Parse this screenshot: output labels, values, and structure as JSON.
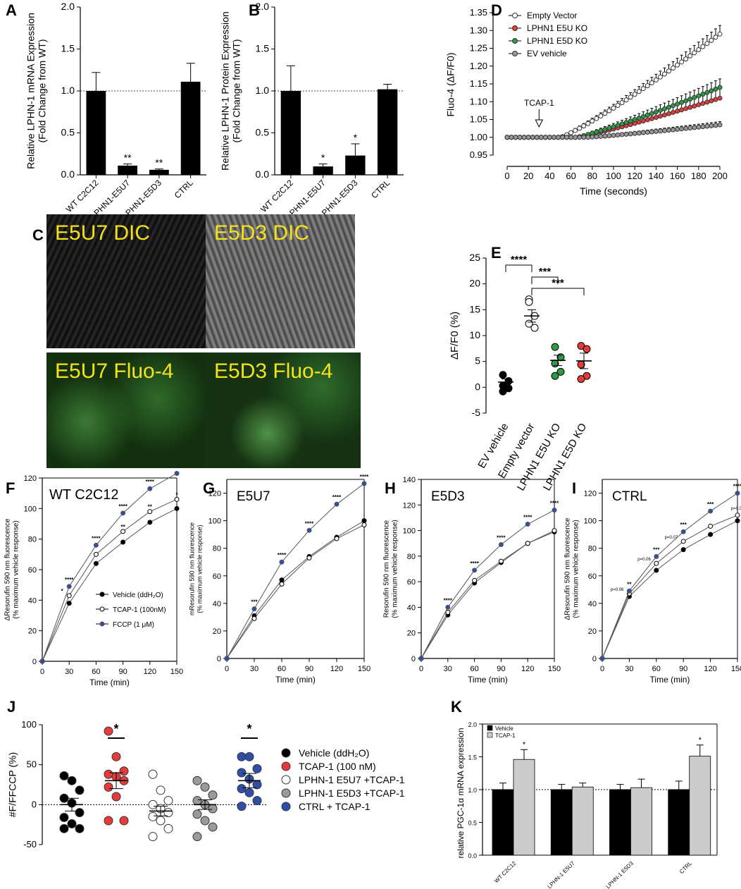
{
  "panel_letters": [
    "A",
    "B",
    "C",
    "D",
    "E",
    "F",
    "G",
    "H",
    "I",
    "J",
    "K"
  ],
  "microscopy": [
    {
      "label": "E5U7 DIC",
      "kind": "dic"
    },
    {
      "label": "E5D3 DIC",
      "kind": "dic"
    },
    {
      "label": "E5U7 Fluo-4",
      "kind": "fluo"
    },
    {
      "label": "E5D3 Fluo-4",
      "kind": "fluo"
    }
  ],
  "colors": {
    "bar": "#000000",
    "red": "#e53b3b",
    "green": "#2e9a46",
    "blue": "#2f4ea8",
    "grey": "#9a9a9a",
    "light_bar": "#cccccc",
    "label_yellow": "#f4e21a"
  },
  "chart_data": [
    {
      "panel": "A",
      "type": "bar",
      "ylabel": "Relative LPHN-1 mRNA Expression\n(Fold Change from WT)",
      "ylim": [
        0,
        2.0
      ],
      "yticks": [
        0.0,
        0.5,
        1.0,
        1.5,
        2.0
      ],
      "reference_line": 1.0,
      "categories": [
        "WT C2C12",
        "LPHN1-E5U7",
        "LPHN1-E5D3",
        "CTRL"
      ],
      "values": [
        1.0,
        0.11,
        0.06,
        1.11
      ],
      "errors": [
        0.22,
        0.02,
        0.01,
        0.22
      ],
      "annotations": [
        "",
        "**",
        "**",
        ""
      ]
    },
    {
      "panel": "B",
      "type": "bar",
      "ylabel": "Relative LPHN-1 Protein Expression\n(Fold Change from WT)",
      "ylim": [
        0,
        2.0
      ],
      "yticks": [
        0.0,
        0.5,
        1.0,
        1.5,
        2.0
      ],
      "reference_line": 1.0,
      "categories": [
        "WT C2C12",
        "LPHN1-E5U7",
        "LPHN1-E5D3",
        "CTRL"
      ],
      "values": [
        1.0,
        0.1,
        0.23,
        1.02
      ],
      "errors": [
        0.3,
        0.03,
        0.14,
        0.06
      ],
      "annotations": [
        "",
        "*",
        "*",
        ""
      ]
    },
    {
      "panel": "D",
      "type": "line",
      "ylabel": "Fluo-4 (ΔF/F0)",
      "xlabel": "Time (seconds)",
      "xlim": [
        0,
        200
      ],
      "ylim": [
        0.95,
        1.35
      ],
      "xticks": [
        0,
        20,
        40,
        60,
        80,
        100,
        120,
        140,
        160,
        180,
        200
      ],
      "yticks": [
        0.95,
        1.0,
        1.05,
        1.1,
        1.15,
        1.2,
        1.25,
        1.3,
        1.35
      ],
      "annotation": {
        "text": "TCAP-1",
        "x": 30
      },
      "legend_position": "top-left",
      "series": [
        {
          "name": "Empty Vector",
          "marker": "open",
          "end": 1.29,
          "start_rise": 50,
          "err": 0.02
        },
        {
          "name": "LPHN1 E5U KO",
          "marker": "red",
          "end": 1.11,
          "start_rise": 65,
          "err": 0.025
        },
        {
          "name": "LPHN1 E5D KO",
          "marker": "green",
          "end": 1.14,
          "start_rise": 65,
          "err": 0.02
        },
        {
          "name": "EV vehicle",
          "marker": "grey",
          "end": 1.035,
          "start_rise": 75,
          "err": 0.005
        }
      ]
    },
    {
      "panel": "E",
      "type": "scatter",
      "ylabel": "ΔF/F0 (%)",
      "ylim": [
        -5,
        25
      ],
      "yticks": [
        -5,
        0,
        5,
        10,
        15,
        20,
        25
      ],
      "categories": [
        "EV vehicle",
        "Empty vector",
        "LPHN1 E5U KO",
        "LPHN1 E5D KO"
      ],
      "points": [
        [
          2.4,
          1.2,
          0.3,
          -0.2,
          -0.8
        ],
        [
          17.0,
          13.8,
          12.3,
          11.5,
          16.5
        ],
        [
          7.8,
          5.8,
          4.6,
          3.0,
          2.2
        ],
        [
          8.0,
          7.4,
          4.4,
          2.2,
          1.6
        ]
      ],
      "means": [
        1.0,
        13.8,
        5.2,
        5.1
      ],
      "sems": [
        0.6,
        1.2,
        1.0,
        1.5
      ],
      "significance": [
        {
          "from": 0,
          "to": 1,
          "label": "****"
        },
        {
          "from": 1,
          "to": 2,
          "label": "***"
        },
        {
          "from": 1,
          "to": 3,
          "label": "***"
        }
      ]
    },
    {
      "panel": "F",
      "type": "line",
      "title": "WT C2C12",
      "ylabel": "ΔResorufin 590 nm fluorescence\n(% maximum vehicle response)",
      "xlabel": "Time (min)",
      "xlim": [
        0,
        150
      ],
      "ylim": [
        0,
        120
      ],
      "xticks": [
        0,
        30,
        60,
        90,
        120,
        150
      ],
      "yticks": [
        0,
        20,
        40,
        60,
        80,
        100,
        120
      ],
      "x": [
        0,
        30,
        60,
        90,
        120,
        150
      ],
      "series": [
        {
          "name": "Vehicle (ddH2O)",
          "values": [
            0,
            38,
            64,
            78,
            91,
            100
          ]
        },
        {
          "name": "TCAP-1 (100nM)",
          "values": [
            0,
            43,
            70,
            85,
            98,
            106
          ]
        },
        {
          "name": "FCCP (1 μM)",
          "values": [
            0,
            49,
            76,
            97,
            113,
            123
          ]
        }
      ],
      "legend_entries": [
        "Vehicle (ddH₂O)",
        "TCAP-1 (100nM)",
        "FCCP (1 μM)"
      ],
      "stars_fccp": [
        "****",
        "****",
        "****",
        "****",
        "****"
      ],
      "stars_tcap": [
        "*",
        "",
        "**",
        "**",
        "*"
      ]
    },
    {
      "panel": "G",
      "type": "line",
      "title": "E5U7",
      "ylabel": "mResorufin 590 nm fluorescence\n(% maximum vehicle response)",
      "xlabel": "Time (min)",
      "xlim": [
        0,
        150
      ],
      "ylim": [
        0,
        130
      ],
      "xticks": [
        0,
        30,
        60,
        90,
        120,
        150
      ],
      "yticks": [
        0,
        20,
        40,
        60,
        80,
        100,
        120
      ],
      "x": [
        0,
        30,
        60,
        90,
        120,
        150
      ],
      "series": [
        {
          "name": "Vehicle",
          "values": [
            0,
            31,
            57,
            74,
            88,
            100
          ]
        },
        {
          "name": "TCAP-1",
          "values": [
            0,
            29,
            54,
            73,
            87,
            97
          ]
        },
        {
          "name": "FCCP",
          "values": [
            0,
            36,
            70,
            93,
            112,
            127
          ]
        }
      ],
      "stars_fccp": [
        "***",
        "****",
        "****",
        "****",
        "****"
      ]
    },
    {
      "panel": "H",
      "type": "line",
      "title": "E5D3",
      "ylabel": "Resorufin 590 nm fluorescence\n(% maximum vehicle response)",
      "xlabel": "Time (min)",
      "xlim": [
        0,
        150
      ],
      "ylim": [
        0,
        140
      ],
      "xticks": [
        0,
        30,
        60,
        90,
        120,
        150
      ],
      "yticks": [
        0,
        20,
        40,
        60,
        80,
        100,
        120,
        140
      ],
      "x": [
        0,
        30,
        60,
        90,
        120,
        150
      ],
      "series": [
        {
          "name": "Vehicle",
          "values": [
            0,
            34,
            59,
            75,
            90,
            99
          ]
        },
        {
          "name": "TCAP-1",
          "values": [
            0,
            36,
            61,
            76,
            90,
            100
          ]
        },
        {
          "name": "FCCP",
          "values": [
            0,
            40,
            69,
            89,
            105,
            116
          ]
        }
      ],
      "stars_fccp": [
        "****",
        "****",
        "****",
        "****",
        "****"
      ]
    },
    {
      "panel": "I",
      "type": "line",
      "title": "CTRL",
      "ylabel": "ΔResorufin 590 nm fluorescence\n(% maximum vehicle response)",
      "xlabel": "Time (min)",
      "xlim": [
        0,
        150
      ],
      "ylim": [
        0,
        130
      ],
      "xticks": [
        0,
        30,
        60,
        90,
        120,
        150
      ],
      "yticks": [
        0,
        20,
        40,
        60,
        80,
        100,
        120
      ],
      "x": [
        0,
        30,
        60,
        90,
        120,
        150
      ],
      "series": [
        {
          "name": "Vehicle",
          "values": [
            0,
            45,
            64,
            79,
            90,
            100
          ]
        },
        {
          "name": "TCAP-1",
          "values": [
            0,
            47,
            69,
            85,
            96,
            104
          ]
        },
        {
          "name": "FCCP",
          "values": [
            0,
            49,
            74,
            92,
            107,
            120
          ]
        }
      ],
      "stars_fccp": [
        "**",
        "***",
        "***",
        "***",
        "****"
      ],
      "p_labels": [
        "p=0.06",
        "p=0.06",
        "p=0.07",
        "",
        "p=0.09"
      ]
    },
    {
      "panel": "J",
      "type": "scatter",
      "ylabel": "#F/FFCCP (%)",
      "ylim": [
        -50,
        100
      ],
      "yticks": [
        -50,
        0,
        50,
        100
      ],
      "groups": [
        "Vehicle (ddH2O)",
        "TCAP-1 (100 nM)",
        "LPHN-1 E5U7 +TCAP-1",
        "LPHN-1 E5D3 +TCAP-1",
        "CTRL + TCAP-1"
      ],
      "legend_entries": [
        "Vehicle (ddH₂O)",
        "TCAP-1 (100 nM)",
        "LPHN-1 E5U7 +TCAP-1",
        "LPHN-1 E5D3 +TCAP-1",
        "CTRL + TCAP-1"
      ],
      "group_colors": [
        "black",
        "red",
        "white",
        "grey",
        "blue"
      ],
      "points": [
        [
          36,
          30,
          18,
          8,
          2,
          -10,
          -16,
          -24,
          -30,
          -30
        ],
        [
          92,
          60,
          42,
          38,
          35,
          30,
          22,
          10,
          -20,
          -20
        ],
        [
          38,
          18,
          5,
          0,
          -5,
          -10,
          -15,
          -20,
          -30,
          -40
        ],
        [
          30,
          22,
          12,
          5,
          0,
          -5,
          -12,
          -20,
          -28,
          -40
        ],
        [
          60,
          60,
          45,
          40,
          32,
          25,
          20,
          15,
          5,
          -2
        ]
      ],
      "means": [
        0,
        30,
        -8,
        0,
        30
      ],
      "sems": [
        8,
        10,
        6,
        6,
        9
      ],
      "annotations": [
        "",
        "*",
        "",
        "",
        "*"
      ]
    },
    {
      "panel": "K",
      "type": "bar",
      "ylabel": "relative PGC-1α mRNA expression",
      "ylim": [
        0,
        2.0
      ],
      "yticks": [
        0.0,
        0.5,
        1.0,
        1.5,
        2.0
      ],
      "reference_line": 1.0,
      "categories": [
        "WT C2C12",
        "LPHN-1 E5U7",
        "LPHN-1 E5D3",
        "CTRL"
      ],
      "series": [
        {
          "name": "Vehicle",
          "values": [
            1.0,
            1.0,
            1.0,
            1.0
          ],
          "errors": [
            0.1,
            0.08,
            0.08,
            0.13
          ]
        },
        {
          "name": "TCAP-1",
          "values": [
            1.46,
            1.04,
            1.03,
            1.51
          ],
          "errors": [
            0.15,
            0.06,
            0.13,
            0.17
          ]
        }
      ],
      "annotations": [
        "*",
        "",
        "",
        "*"
      ],
      "legend_position": "top-left"
    }
  ]
}
